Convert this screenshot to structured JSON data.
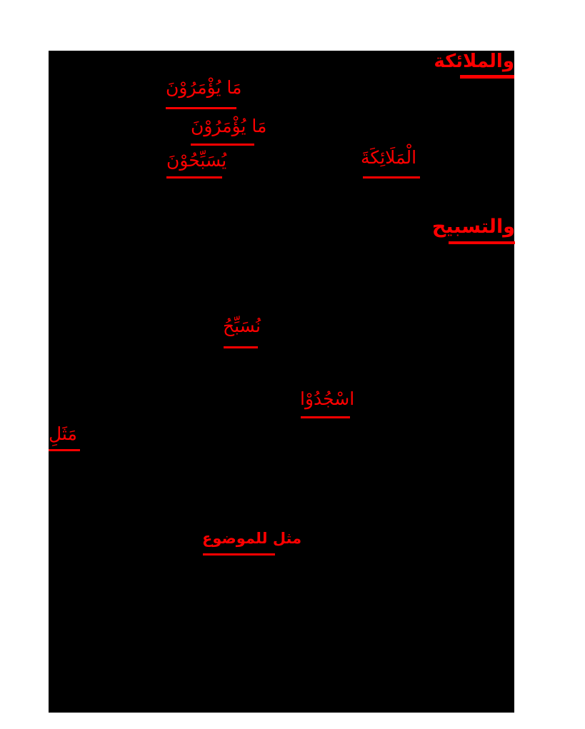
{
  "page": {
    "background_color": "#ffffff",
    "scan_background_color": "#000000",
    "accent_color": "#ff0000"
  },
  "annotations": [
    {
      "role": "section-heading",
      "text": "والملائكة",
      "underlined": true
    },
    {
      "role": "answer-word",
      "text": "مَا يُؤْمَرُوْنَ",
      "underlined": true
    },
    {
      "role": "answer-word",
      "text": "مَا يُؤْمَرُوْنَ",
      "underlined": true
    },
    {
      "role": "answer-word",
      "text": "يُسَبِّحُوْنَ",
      "underlined": true
    },
    {
      "role": "answer-word",
      "text": "الْمَلَائِكَةَ",
      "underlined": true
    },
    {
      "role": "section-heading",
      "text": "والتسبيح",
      "underlined": true
    },
    {
      "role": "answer-word",
      "text": "نُسَبِّحُ",
      "underlined": true
    },
    {
      "role": "answer-word",
      "text": "اسْجُدُوْا",
      "underlined": true
    },
    {
      "role": "answer-word",
      "text": "مَثَلِ",
      "underlined": true
    },
    {
      "role": "note-heading",
      "text": "مثل للموضوع",
      "underlined": true
    }
  ]
}
